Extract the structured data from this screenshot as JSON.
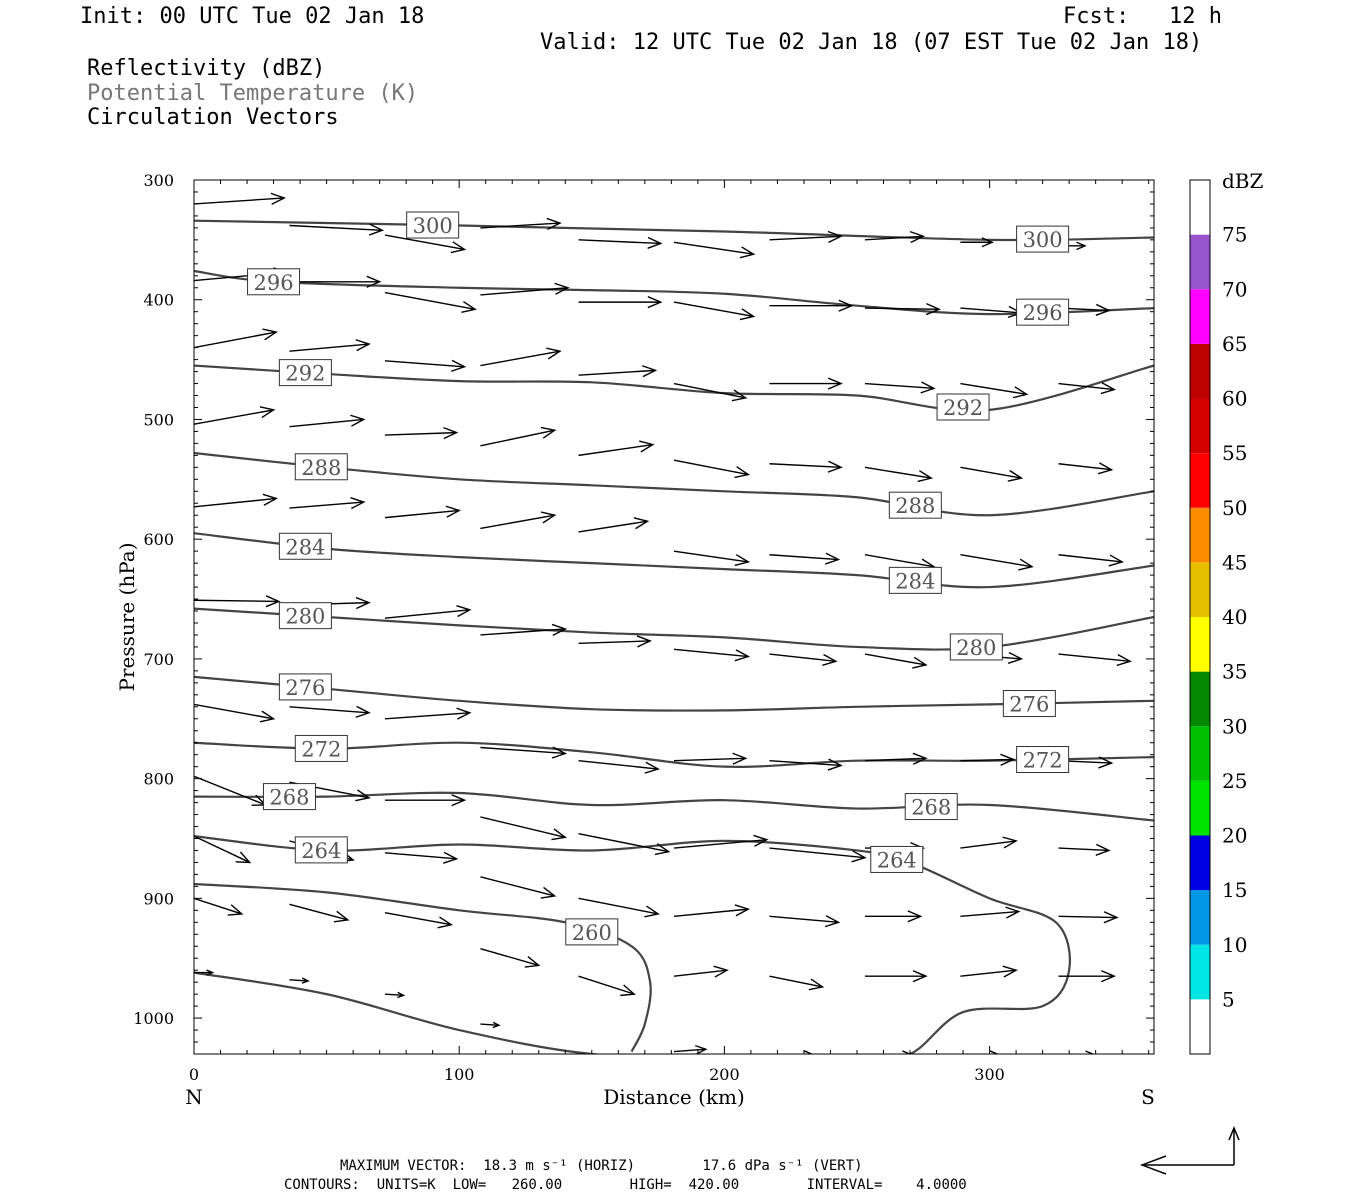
{
  "header": {
    "init": "Init: 00 UTC Tue 02 Jan 18",
    "fcst": "Fcst:   12 h",
    "valid": "Valid: 12 UTC Tue 02 Jan 18 (07 EST Tue 02 Jan 18)",
    "fields": [
      "Reflectivity (dBZ)",
      "Potential Temperature (K)",
      "Circulation Vectors"
    ]
  },
  "footer": {
    "max_vector": "MAXIMUM VECTOR:  18.3 m s⁻¹ (HORIZ)        17.6 dPa s⁻¹ (VERT)",
    "contours": "CONTOURS:  UNITS=K  LOW=   260.00        HIGH=  420.00        INTERVAL=    4.0000"
  },
  "chart_data": {
    "type": "line",
    "xlabel": "Distance (km)",
    "ylabel": "Pressure (hPa)",
    "xlim": [
      0,
      362
    ],
    "ylim": [
      1030,
      300
    ],
    "x_ticks": [
      0,
      100,
      200,
      300
    ],
    "y_ticks": [
      300,
      400,
      500,
      600,
      700,
      800,
      900,
      1000
    ],
    "x_end_labels": {
      "left": "N",
      "right": "S"
    },
    "colors": {
      "contour": "#444444",
      "vector": "#000000"
    },
    "series": [
      {
        "name": "300",
        "x": [
          0,
          100,
          200,
          300,
          362
        ],
        "y": [
          334,
          338,
          343,
          350,
          348
        ]
      },
      {
        "name": "296",
        "x": [
          0,
          30,
          100,
          150,
          200,
          250,
          300,
          362
        ],
        "y": [
          376,
          385,
          390,
          392,
          395,
          405,
          412,
          407
        ]
      },
      {
        "name": "292",
        "x": [
          0,
          50,
          100,
          150,
          200,
          250,
          300,
          362
        ],
        "y": [
          455,
          462,
          468,
          469,
          478,
          480,
          492,
          455
        ]
      },
      {
        "name": "288",
        "x": [
          0,
          50,
          100,
          150,
          200,
          250,
          300,
          362
        ],
        "y": [
          528,
          540,
          550,
          555,
          560,
          565,
          580,
          560
        ]
      },
      {
        "name": "284",
        "x": [
          0,
          50,
          100,
          150,
          200,
          250,
          300,
          362
        ],
        "y": [
          595,
          608,
          615,
          620,
          625,
          630,
          640,
          622
        ]
      },
      {
        "name": "280",
        "x": [
          0,
          50,
          100,
          150,
          200,
          250,
          300,
          362
        ],
        "y": [
          658,
          665,
          672,
          678,
          682,
          690,
          690,
          665
        ]
      },
      {
        "name": "276",
        "x": [
          0,
          50,
          100,
          150,
          200,
          250,
          300,
          362
        ],
        "y": [
          715,
          725,
          735,
          742,
          743,
          740,
          738,
          735
        ]
      },
      {
        "name": "272",
        "x": [
          0,
          50,
          100,
          150,
          200,
          250,
          300,
          362
        ],
        "y": [
          770,
          775,
          770,
          778,
          790,
          785,
          785,
          782
        ]
      },
      {
        "name": "268",
        "x": [
          0,
          50,
          100,
          150,
          200,
          250,
          300,
          362
        ],
        "y": [
          815,
          815,
          812,
          822,
          818,
          825,
          822,
          835
        ]
      },
      {
        "name": "264",
        "x": [
          0,
          50,
          100,
          150,
          200,
          250,
          270,
          300,
          325,
          330,
          320,
          290,
          270,
          250,
          200,
          150,
          100,
          50,
          0
        ],
        "y": [
          848,
          860,
          855,
          860,
          852,
          860,
          870,
          900,
          920,
          960,
          990,
          995,
          1030,
          1032,
          1032,
          1030,
          1010,
          980,
          962
        ]
      },
      {
        "name": "260",
        "x": [
          0,
          50,
          100,
          140,
          165,
          172,
          170,
          165
        ],
        "y": [
          888,
          895,
          910,
          920,
          940,
          970,
          1005,
          1028
        ]
      }
    ],
    "vectors": [
      {
        "x": 0,
        "y": 320,
        "u": 34,
        "v": -5
      },
      {
        "x": 36,
        "y": 338,
        "u": 35,
        "v": 4
      },
      {
        "x": 72,
        "y": 346,
        "u": 30,
        "v": 12
      },
      {
        "x": 108,
        "y": 340,
        "u": 30,
        "v": -4
      },
      {
        "x": 145,
        "y": 350,
        "u": 31,
        "v": 3
      },
      {
        "x": 181,
        "y": 352,
        "u": 30,
        "v": 10
      },
      {
        "x": 217,
        "y": 350,
        "u": 27,
        "v": -3
      },
      {
        "x": 253,
        "y": 350,
        "u": 22,
        "v": -3
      },
      {
        "x": 289,
        "y": 352,
        "u": 12,
        "v": 0
      },
      {
        "x": 326,
        "y": 355,
        "u": 10,
        "v": 0
      },
      {
        "x": 0,
        "y": 384,
        "u": 35,
        "v": -7
      },
      {
        "x": 36,
        "y": 385,
        "u": 34,
        "v": 0
      },
      {
        "x": 72,
        "y": 394,
        "u": 34,
        "v": 14
      },
      {
        "x": 108,
        "y": 396,
        "u": 33,
        "v": -6
      },
      {
        "x": 145,
        "y": 402,
        "u": 31,
        "v": 0
      },
      {
        "x": 181,
        "y": 402,
        "u": 30,
        "v": 12
      },
      {
        "x": 217,
        "y": 405,
        "u": 31,
        "v": 0
      },
      {
        "x": 253,
        "y": 407,
        "u": 28,
        "v": 1
      },
      {
        "x": 289,
        "y": 407,
        "u": 23,
        "v": 4
      },
      {
        "x": 326,
        "y": 407,
        "u": 19,
        "v": 2
      },
      {
        "x": 0,
        "y": 440,
        "u": 31,
        "v": -13
      },
      {
        "x": 36,
        "y": 443,
        "u": 30,
        "v": -6
      },
      {
        "x": 72,
        "y": 451,
        "u": 30,
        "v": 5
      },
      {
        "x": 108,
        "y": 455,
        "u": 30,
        "v": -12
      },
      {
        "x": 145,
        "y": 463,
        "u": 29,
        "v": -4
      },
      {
        "x": 181,
        "y": 470,
        "u": 27,
        "v": 12
      },
      {
        "x": 217,
        "y": 470,
        "u": 27,
        "v": 0
      },
      {
        "x": 253,
        "y": 470,
        "u": 26,
        "v": 4
      },
      {
        "x": 289,
        "y": 470,
        "u": 25,
        "v": 9
      },
      {
        "x": 326,
        "y": 470,
        "u": 21,
        "v": 5
      },
      {
        "x": 0,
        "y": 504,
        "u": 30,
        "v": -12
      },
      {
        "x": 36,
        "y": 506,
        "u": 28,
        "v": -6
      },
      {
        "x": 72,
        "y": 513,
        "u": 27,
        "v": -2
      },
      {
        "x": 108,
        "y": 522,
        "u": 28,
        "v": -13
      },
      {
        "x": 145,
        "y": 530,
        "u": 28,
        "v": -9
      },
      {
        "x": 181,
        "y": 534,
        "u": 28,
        "v": 12
      },
      {
        "x": 217,
        "y": 537,
        "u": 27,
        "v": 3
      },
      {
        "x": 253,
        "y": 540,
        "u": 25,
        "v": 9
      },
      {
        "x": 289,
        "y": 540,
        "u": 23,
        "v": 9
      },
      {
        "x": 326,
        "y": 537,
        "u": 20,
        "v": 5
      },
      {
        "x": 0,
        "y": 573,
        "u": 31,
        "v": -7
      },
      {
        "x": 36,
        "y": 574,
        "u": 28,
        "v": -5
      },
      {
        "x": 72,
        "y": 582,
        "u": 28,
        "v": -6
      },
      {
        "x": 108,
        "y": 591,
        "u": 28,
        "v": -11
      },
      {
        "x": 145,
        "y": 594,
        "u": 26,
        "v": -9
      },
      {
        "x": 181,
        "y": 610,
        "u": 28,
        "v": 9
      },
      {
        "x": 217,
        "y": 613,
        "u": 26,
        "v": 4
      },
      {
        "x": 253,
        "y": 613,
        "u": 26,
        "v": 10
      },
      {
        "x": 289,
        "y": 613,
        "u": 27,
        "v": 10
      },
      {
        "x": 326,
        "y": 613,
        "u": 24,
        "v": 6
      },
      {
        "x": 0,
        "y": 651,
        "u": 32,
        "v": 1
      },
      {
        "x": 36,
        "y": 655,
        "u": 30,
        "v": -2
      },
      {
        "x": 72,
        "y": 666,
        "u": 32,
        "v": -7
      },
      {
        "x": 108,
        "y": 680,
        "u": 32,
        "v": -5
      },
      {
        "x": 145,
        "y": 687,
        "u": 27,
        "v": -2
      },
      {
        "x": 181,
        "y": 692,
        "u": 28,
        "v": 6
      },
      {
        "x": 217,
        "y": 696,
        "u": 25,
        "v": 6
      },
      {
        "x": 253,
        "y": 696,
        "u": 23,
        "v": 9
      },
      {
        "x": 289,
        "y": 696,
        "u": 23,
        "v": 4
      },
      {
        "x": 326,
        "y": 696,
        "u": 27,
        "v": 6
      },
      {
        "x": 0,
        "y": 738,
        "u": 30,
        "v": 12
      },
      {
        "x": 36,
        "y": 740,
        "u": 30,
        "v": 5
      },
      {
        "x": 72,
        "y": 750,
        "u": 32,
        "v": -5
      },
      {
        "x": 108,
        "y": 774,
        "u": 32,
        "v": 5
      },
      {
        "x": 145,
        "y": 785,
        "u": 30,
        "v": 7
      },
      {
        "x": 181,
        "y": 785,
        "u": 27,
        "v": -2
      },
      {
        "x": 217,
        "y": 785,
        "u": 27,
        "v": 4
      },
      {
        "x": 253,
        "y": 785,
        "u": 23,
        "v": -2
      },
      {
        "x": 289,
        "y": 785,
        "u": 20,
        "v": -1
      },
      {
        "x": 326,
        "y": 785,
        "u": 20,
        "v": 2
      },
      {
        "x": 0,
        "y": 798,
        "u": 27,
        "v": 24
      },
      {
        "x": 36,
        "y": 803,
        "u": 30,
        "v": 13
      },
      {
        "x": 72,
        "y": 818,
        "u": 30,
        "v": 0
      },
      {
        "x": 108,
        "y": 832,
        "u": 32,
        "v": 17
      },
      {
        "x": 145,
        "y": 846,
        "u": 34,
        "v": 15
      },
      {
        "x": 181,
        "y": 858,
        "u": 35,
        "v": -7
      },
      {
        "x": 217,
        "y": 858,
        "u": 36,
        "v": 8
      },
      {
        "x": 253,
        "y": 858,
        "u": 22,
        "v": 0
      },
      {
        "x": 289,
        "y": 858,
        "u": 21,
        "v": -6
      },
      {
        "x": 326,
        "y": 858,
        "u": 19,
        "v": 2
      },
      {
        "x": 0,
        "y": 848,
        "u": 21,
        "v": 22
      },
      {
        "x": 36,
        "y": 852,
        "u": 24,
        "v": 16
      },
      {
        "x": 72,
        "y": 862,
        "u": 27,
        "v": 5
      },
      {
        "x": 108,
        "y": 882,
        "u": 28,
        "v": 16
      },
      {
        "x": 145,
        "y": 900,
        "u": 30,
        "v": 13
      },
      {
        "x": 181,
        "y": 915,
        "u": 28,
        "v": -6
      },
      {
        "x": 217,
        "y": 915,
        "u": 26,
        "v": 5
      },
      {
        "x": 253,
        "y": 915,
        "u": 21,
        "v": 0
      },
      {
        "x": 289,
        "y": 915,
        "u": 22,
        "v": -4
      },
      {
        "x": 326,
        "y": 915,
        "u": 22,
        "v": 1
      },
      {
        "x": 0,
        "y": 900,
        "u": 18,
        "v": 13
      },
      {
        "x": 36,
        "y": 905,
        "u": 22,
        "v": 13
      },
      {
        "x": 72,
        "y": 912,
        "u": 25,
        "v": 10
      },
      {
        "x": 108,
        "y": 942,
        "u": 22,
        "v": 14
      },
      {
        "x": 145,
        "y": 965,
        "u": 21,
        "v": 15
      },
      {
        "x": 181,
        "y": 965,
        "u": 20,
        "v": -5
      },
      {
        "x": 217,
        "y": 965,
        "u": 20,
        "v": 9
      },
      {
        "x": 253,
        "y": 965,
        "u": 23,
        "v": 0
      },
      {
        "x": 289,
        "y": 965,
        "u": 21,
        "v": -5
      },
      {
        "x": 326,
        "y": 965,
        "u": 21,
        "v": 0
      },
      {
        "x": 0,
        "y": 962,
        "u": 7,
        "v": 0
      },
      {
        "x": 36,
        "y": 968,
        "u": 7,
        "v": 1
      },
      {
        "x": 72,
        "y": 980,
        "u": 7,
        "v": 1
      },
      {
        "x": 108,
        "y": 1005,
        "u": 7,
        "v": 1
      },
      {
        "x": 181,
        "y": 1028,
        "u": 12,
        "v": -2
      },
      {
        "x": 217,
        "y": 1032,
        "u": 18,
        "v": 0
      },
      {
        "x": 253,
        "y": 1032,
        "u": 19,
        "v": 0
      },
      {
        "x": 289,
        "y": 1032,
        "u": 16,
        "v": 0
      },
      {
        "x": 326,
        "y": 1032,
        "u": 15,
        "v": 0
      }
    ],
    "colorbar": {
      "title": "dBZ",
      "labels": [
        "5",
        "10",
        "15",
        "20",
        "25",
        "30",
        "35",
        "40",
        "45",
        "50",
        "55",
        "60",
        "65",
        "70",
        "75"
      ],
      "colors": [
        "#ffffff",
        "#00e5e5",
        "#0099e5",
        "#0000e5",
        "#00e500",
        "#00c000",
        "#008800",
        "#ffff00",
        "#e5bf00",
        "#ff8c00",
        "#ff0000",
        "#d50000",
        "#bf0000",
        "#ff00ff",
        "#9955cc",
        "#ffffff"
      ]
    },
    "legend_arrows": {
      "horiz": "18.3 m s⁻¹",
      "vert": "17.6 dPa s⁻¹"
    }
  }
}
